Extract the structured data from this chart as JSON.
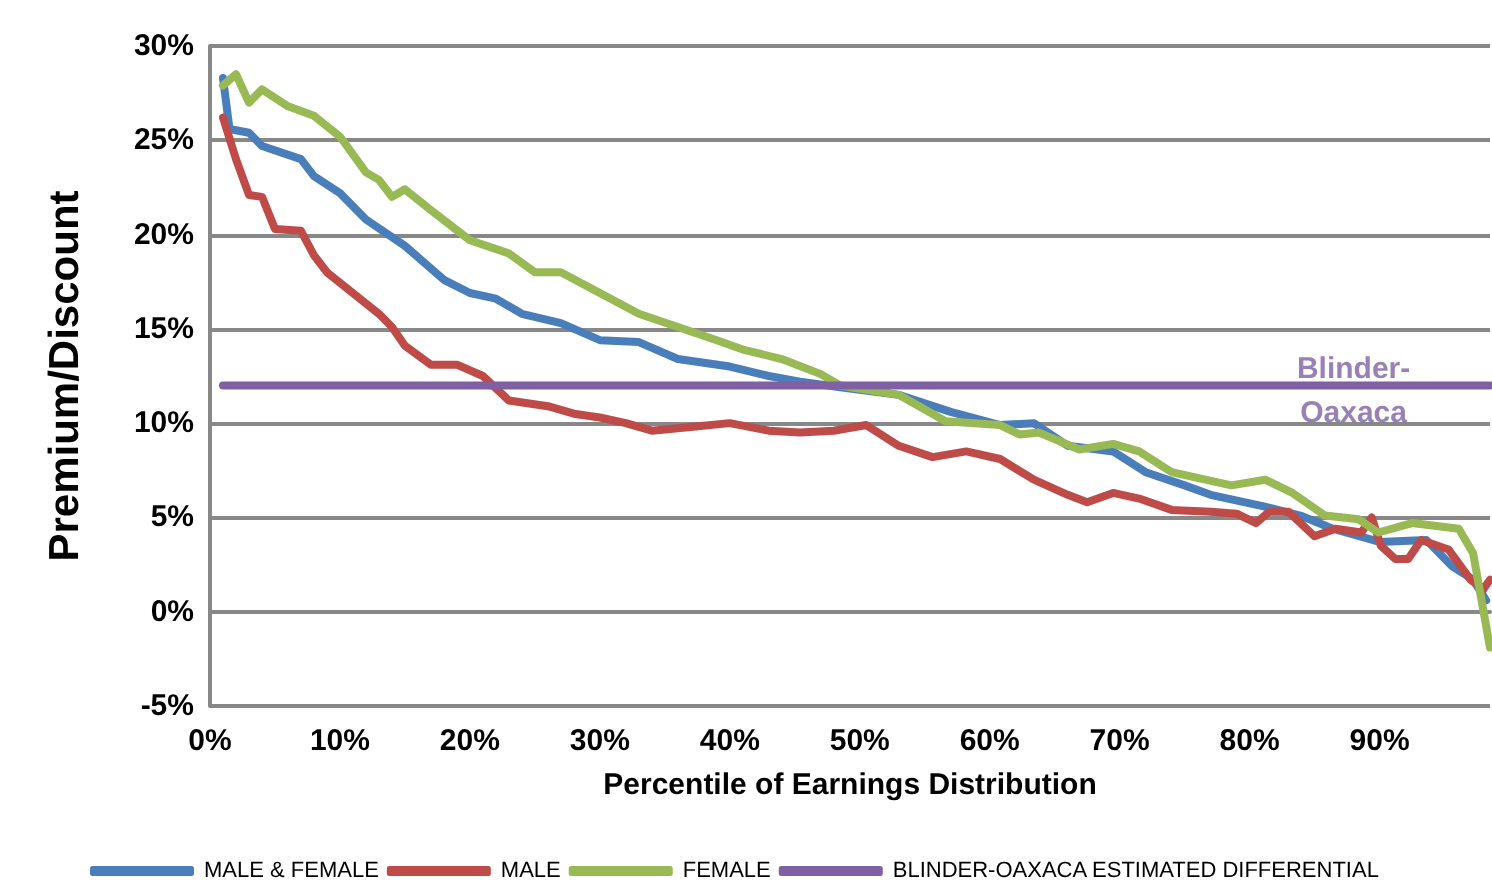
{
  "chart_data": {
    "type": "line",
    "xlabel": "Percentile of Earnings Distribution",
    "ylabel": "Premium/Discount",
    "xlim": [
      0,
      98.5
    ],
    "xticks": [
      {
        "value": 0,
        "label": "0%"
      },
      {
        "value": 10,
        "label": "10%"
      },
      {
        "value": 20,
        "label": "20%"
      },
      {
        "value": 30,
        "label": "30%"
      },
      {
        "value": 40,
        "label": "40%"
      },
      {
        "value": 50,
        "label": "50%"
      },
      {
        "value": 60,
        "label": "60%"
      },
      {
        "value": 70,
        "label": "70%"
      },
      {
        "value": 80,
        "label": "80%"
      },
      {
        "value": 90,
        "label": "90%"
      }
    ],
    "ylim": [
      -5,
      30
    ],
    "yticks": [
      {
        "value": -5,
        "label": "-5%"
      },
      {
        "value": 0,
        "label": "0%"
      },
      {
        "value": 5,
        "label": "5%"
      },
      {
        "value": 10,
        "label": "10%"
      },
      {
        "value": 15,
        "label": "15%"
      },
      {
        "value": 20,
        "label": "20%"
      },
      {
        "value": 25,
        "label": "25%"
      },
      {
        "value": 30,
        "label": "30%"
      }
    ],
    "grid": "y",
    "legend": "bottom",
    "marker": "none",
    "line_style": "solid",
    "series": [
      {
        "name": "MALE & FEMALE",
        "color": "#4a7ebb",
        "x": [
          1,
          1.5,
          3,
          4,
          7,
          8,
          10,
          12,
          15,
          18,
          20,
          22,
          24,
          27,
          30,
          33,
          36,
          40,
          43,
          45.4,
          48.5,
          53,
          57,
          60.8,
          63.4,
          66,
          69.5,
          72,
          75,
          77,
          81,
          83.9,
          86.4,
          90,
          93.6,
          95.6,
          97.2,
          98.2
        ],
        "values": [
          28.3,
          25.6,
          25.4,
          24.7,
          24.0,
          23.1,
          22.2,
          20.8,
          19.4,
          17.6,
          16.9,
          16.6,
          15.8,
          15.3,
          14.4,
          14.3,
          13.4,
          13.0,
          12.5,
          12.2,
          11.9,
          11.5,
          10.6,
          9.9,
          10.0,
          8.8,
          8.5,
          7.4,
          6.7,
          6.2,
          5.6,
          5.1,
          4.4,
          3.7,
          3.8,
          2.4,
          1.7,
          0.6
        ]
      },
      {
        "name": "MALE",
        "color": "#be4b48",
        "x": [
          1,
          2,
          3,
          4,
          5,
          7,
          8,
          9,
          11,
          13,
          14,
          15,
          17,
          19,
          21,
          23,
          26,
          28,
          30,
          32,
          34,
          37,
          40,
          43,
          45.4,
          48,
          50.5,
          53,
          55.6,
          58.2,
          60.8,
          63.4,
          66,
          67.5,
          69.5,
          71.5,
          74,
          77,
          79,
          80.5,
          81.5,
          83,
          85,
          86.6,
          88.6,
          89.4,
          90.1,
          91.2,
          92.2,
          93.2,
          95.3,
          97,
          98,
          98.5
        ],
        "values": [
          26.2,
          24.0,
          22.1,
          22.0,
          20.3,
          20.2,
          18.9,
          18.0,
          16.9,
          15.8,
          15.1,
          14.1,
          13.1,
          13.1,
          12.5,
          11.2,
          10.9,
          10.5,
          10.3,
          10.0,
          9.6,
          9.8,
          10.0,
          9.6,
          9.5,
          9.6,
          9.9,
          8.8,
          8.2,
          8.5,
          8.1,
          7.0,
          6.2,
          5.8,
          6.3,
          6.0,
          5.4,
          5.3,
          5.2,
          4.7,
          5.3,
          5.3,
          4.0,
          4.4,
          4.2,
          5.0,
          3.5,
          2.8,
          2.8,
          3.8,
          3.3,
          1.7,
          1.2,
          1.7
        ]
      },
      {
        "name": "FEMALE",
        "color": "#98b954",
        "x": [
          1,
          2,
          3,
          4,
          6,
          8,
          10,
          12,
          13,
          14,
          15,
          17,
          20,
          23,
          25,
          27,
          30,
          33,
          36,
          39,
          41,
          44,
          47,
          48.5,
          53,
          56.6,
          60.8,
          62.3,
          63.8,
          66.9,
          69.5,
          71.5,
          74,
          76.6,
          78.6,
          81.2,
          83.3,
          85.8,
          88.4,
          89.9,
          92.5,
          96.1,
          97.2,
          98.5
        ],
        "values": [
          27.9,
          28.5,
          27.0,
          27.7,
          26.8,
          26.3,
          25.2,
          23.3,
          22.9,
          22.0,
          22.4,
          21.3,
          19.7,
          19.0,
          18.0,
          18.0,
          16.9,
          15.8,
          15.1,
          14.4,
          13.9,
          13.4,
          12.6,
          12.0,
          11.5,
          10.1,
          9.9,
          9.4,
          9.5,
          8.6,
          8.9,
          8.5,
          7.4,
          7.0,
          6.7,
          7.0,
          6.3,
          5.1,
          4.9,
          4.2,
          4.7,
          4.4,
          3.1,
          -1.9
        ]
      },
      {
        "name": "BLINDER-OAXACA ESTIMATED DIFFERENTIAL",
        "color": "#7f60a2",
        "x": [
          1,
          98.5
        ],
        "values": [
          12,
          12
        ]
      }
    ],
    "annotations": [
      {
        "text": "Blinder-Oaxaca",
        "x": 88,
        "y": 12
      }
    ]
  }
}
